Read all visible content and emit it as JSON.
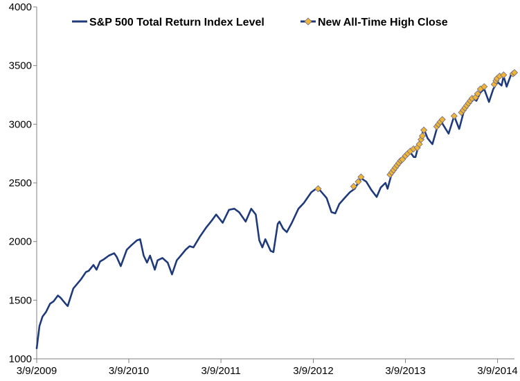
{
  "chart_data": {
    "type": "line",
    "title": "",
    "xlabel": "",
    "ylabel": "",
    "ylim": [
      1000,
      4000
    ],
    "y_ticks": [
      1000,
      1500,
      2000,
      2500,
      3000,
      3500,
      4000
    ],
    "x_ticks": [
      "3/9/2009",
      "3/9/2010",
      "3/9/2011",
      "3/9/2012",
      "3/9/2013",
      "3/9/2014"
    ],
    "xlim": [
      "3/9/2009",
      "5/15/2014"
    ],
    "grid": false,
    "legend_position": "top",
    "series": [
      {
        "name": "S&P 500 Total Return Index Level",
        "color": "#1f3a7a",
        "marker": "none",
        "x": [
          "3/9/2009",
          "3/20/2009",
          "4/1/2009",
          "4/15/2009",
          "5/1/2009",
          "5/15/2009",
          "6/1/2009",
          "6/12/2009",
          "7/1/2009",
          "7/10/2009",
          "8/1/2009",
          "9/1/2009",
          "9/20/2009",
          "10/1/2009",
          "10/20/2009",
          "11/1/2009",
          "11/15/2009",
          "12/1/2009",
          "12/20/2009",
          "1/10/2010",
          "1/20/2010",
          "2/5/2010",
          "3/1/2010",
          "3/20/2010",
          "4/10/2010",
          "4/23/2010",
          "5/7/2010",
          "5/20/2010",
          "6/1/2010",
          "6/20/2010",
          "7/1/2010",
          "7/20/2010",
          "8/10/2010",
          "8/27/2010",
          "9/15/2010",
          "10/1/2010",
          "10/20/2010",
          "11/5/2010",
          "11/20/2010",
          "12/15/2010",
          "1/10/2011",
          "2/1/2011",
          "2/18/2011",
          "3/16/2011",
          "4/10/2011",
          "5/1/2011",
          "5/20/2011",
          "6/15/2011",
          "7/7/2011",
          "7/25/2011",
          "8/8/2011",
          "8/20/2011",
          "9/1/2011",
          "9/22/2011",
          "10/3/2011",
          "10/20/2011",
          "10/27/2011",
          "11/10/2011",
          "11/25/2011",
          "12/15/2011",
          "1/10/2012",
          "2/1/2012",
          "3/1/2012",
          "3/26/2012",
          "4/15/2012",
          "5/1/2012",
          "5/20/2012",
          "6/4/2012",
          "6/20/2012",
          "7/15/2012",
          "8/1/2012",
          "8/20/2012",
          "9/14/2012",
          "10/5/2012",
          "10/25/2012",
          "11/15/2012",
          "12/1/2012",
          "12/20/2012",
          "12/28/2012",
          "1/15/2013",
          "2/1/2013",
          "2/20/2013",
          "3/9/2013",
          "3/25/2013",
          "4/11/2013",
          "4/18/2013",
          "5/1/2013",
          "5/21/2013",
          "6/5/2013",
          "6/24/2013",
          "7/15/2013",
          "8/1/2013",
          "8/27/2013",
          "9/18/2013",
          "10/8/2013",
          "10/25/2013",
          "11/15/2013",
          "12/1/2013",
          "12/15/2013",
          "12/31/2013",
          "1/15/2014",
          "2/3/2014",
          "2/20/2014",
          "3/9/2014",
          "3/25/2014",
          "4/2/2014",
          "4/14/2014",
          "5/1/2014",
          "5/15/2014"
        ],
        "values": [
          1090,
          1280,
          1360,
          1400,
          1470,
          1490,
          1540,
          1520,
          1470,
          1450,
          1600,
          1680,
          1740,
          1750,
          1800,
          1760,
          1830,
          1850,
          1880,
          1900,
          1870,
          1790,
          1930,
          1970,
          2010,
          2020,
          1880,
          1820,
          1880,
          1760,
          1840,
          1860,
          1820,
          1720,
          1840,
          1880,
          1930,
          1960,
          1950,
          2040,
          2120,
          2180,
          2230,
          2160,
          2270,
          2280,
          2250,
          2170,
          2280,
          2230,
          2010,
          1950,
          2020,
          1920,
          1910,
          2150,
          2170,
          2110,
          2080,
          2160,
          2280,
          2330,
          2420,
          2460,
          2410,
          2370,
          2250,
          2240,
          2320,
          2380,
          2420,
          2450,
          2540,
          2510,
          2440,
          2380,
          2460,
          2500,
          2450,
          2590,
          2650,
          2680,
          2740,
          2770,
          2720,
          2720,
          2830,
          2960,
          2880,
          2830,
          2990,
          3010,
          2920,
          3070,
          2960,
          3100,
          3180,
          3220,
          3200,
          3270,
          3300,
          3190,
          3300,
          3360,
          3330,
          3410,
          3320,
          3420,
          3440
        ]
      },
      {
        "name": "New All-Time High Close",
        "color": "#f0b536",
        "marker": "diamond",
        "x": [
          "3/28/2012",
          "8/16/2012",
          "9/3/2012",
          "9/14/2012",
          "1/7/2013",
          "1/14/2013",
          "1/21/2013",
          "1/28/2013",
          "2/4/2013",
          "2/11/2013",
          "2/18/2013",
          "2/25/2013",
          "3/9/2013",
          "3/18/2013",
          "3/28/2013",
          "4/10/2013",
          "4/25/2013",
          "5/3/2013",
          "5/10/2013",
          "5/15/2013",
          "5/21/2013",
          "7/11/2013",
          "7/18/2013",
          "7/25/2013",
          "8/2/2013",
          "9/18/2013",
          "10/17/2013",
          "10/24/2013",
          "10/31/2013",
          "11/7/2013",
          "11/14/2013",
          "11/21/2013",
          "11/28/2013",
          "12/12/2013",
          "12/20/2013",
          "12/31/2013",
          "1/15/2014",
          "2/24/2014",
          "3/3/2014",
          "3/7/2014",
          "3/17/2014",
          "4/2/2014",
          "5/9/2014",
          "5/15/2014"
        ],
        "values": [
          2450,
          2470,
          2510,
          2550,
          2570,
          2590,
          2610,
          2630,
          2650,
          2670,
          2690,
          2700,
          2730,
          2750,
          2770,
          2790,
          2800,
          2830,
          2870,
          2900,
          2950,
          2980,
          3000,
          3020,
          3040,
          3070,
          3100,
          3120,
          3140,
          3160,
          3180,
          3200,
          3220,
          3230,
          3260,
          3300,
          3320,
          3340,
          3370,
          3390,
          3410,
          3420,
          3430,
          3440
        ]
      }
    ]
  }
}
